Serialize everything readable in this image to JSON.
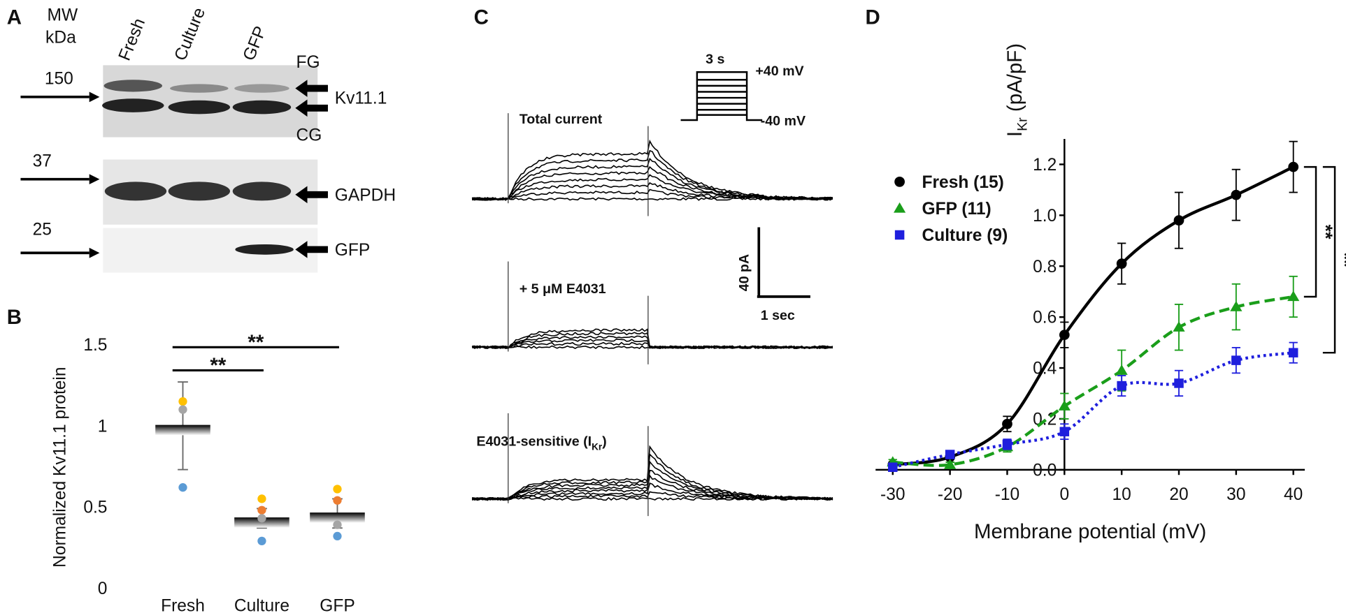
{
  "panel_labels": [
    "A",
    "B",
    "C",
    "D"
  ],
  "blot": {
    "mw_label": "MW",
    "mw_unit": "kDa",
    "lanes": [
      "Fresh",
      "Culture",
      "GFP"
    ],
    "markers": [
      "150",
      "37",
      "25"
    ],
    "band_labels": [
      "FG",
      "CG"
    ],
    "targets": [
      "Kv11.1",
      "GAPDH",
      "GFP"
    ]
  },
  "traces": {
    "labels": [
      "Total current",
      "+ 5 μM E4031"
    ],
    "sensitive_label_parts": [
      "E4031-sensitive (I",
      "Kr",
      ")"
    ],
    "protocol": {
      "duration": "3 s",
      "high": "+40 mV",
      "low": "-40 mV"
    },
    "scale": {
      "y": "40 pA",
      "x": "1 sec"
    }
  },
  "chart_data": [
    {
      "type": "dot",
      "ylabel": "Normalized Kv11.1 protein",
      "categories": [
        "Fresh",
        "Culture",
        "GFP"
      ],
      "means": [
        1.0,
        0.43,
        0.46
      ],
      "errors": [
        0.27,
        0.06,
        0.09
      ],
      "series": [
        {
          "color": "#ffc000",
          "values": [
            1.15,
            0.55,
            0.61
          ]
        },
        {
          "color": "#ed7d31",
          "values": [
            null,
            0.48,
            0.54
          ]
        },
        {
          "color": "#a5a5a5",
          "values": [
            1.1,
            0.43,
            0.39
          ]
        },
        {
          "color": "#5b9bd5",
          "values": [
            0.62,
            0.29,
            0.32
          ]
        }
      ],
      "ylim": [
        0,
        1.5
      ],
      "yticks": [
        0,
        0.5,
        1,
        1.5
      ],
      "significance": [
        {
          "from": 0,
          "to": 1,
          "label": "**"
        },
        {
          "from": 0,
          "to": 2,
          "label": "**"
        }
      ]
    },
    {
      "type": "line",
      "xlabel": "Membrane potential (mV)",
      "ylabel_parts": [
        "I",
        "Kr",
        " (pA/pF)"
      ],
      "x": [
        -30,
        -20,
        -10,
        0,
        10,
        20,
        30,
        40
      ],
      "series": [
        {
          "name": "Fresh (15)",
          "color": "#000000",
          "marker": "circle",
          "dash": "solid",
          "values": [
            0.02,
            0.05,
            0.18,
            0.53,
            0.81,
            0.98,
            1.08,
            1.19
          ],
          "errors": [
            0.01,
            0.02,
            0.03,
            0.05,
            0.08,
            0.11,
            0.1,
            0.1
          ]
        },
        {
          "name": "GFP (11)",
          "color": "#1a9e1a",
          "marker": "triangle",
          "dash": "dashed",
          "values": [
            0.03,
            0.02,
            0.09,
            0.25,
            0.39,
            0.56,
            0.64,
            0.68
          ],
          "errors": [
            0.01,
            0.01,
            0.02,
            0.05,
            0.08,
            0.09,
            0.09,
            0.08
          ]
        },
        {
          "name": "Culture (9)",
          "color": "#1f1fdd",
          "marker": "square",
          "dash": "dotted",
          "values": [
            0.01,
            0.06,
            0.1,
            0.15,
            0.33,
            0.34,
            0.43,
            0.46
          ],
          "errors": [
            0.01,
            0.01,
            0.02,
            0.03,
            0.04,
            0.05,
            0.05,
            0.04
          ]
        }
      ],
      "xlim": [
        -33,
        42
      ],
      "xticks": [
        -30,
        -20,
        -10,
        0,
        10,
        20,
        30,
        40
      ],
      "ylim": [
        0,
        1.3
      ],
      "yticks": [
        {
          "value": 0,
          "label": "0.0"
        },
        0.2,
        0.4,
        0.6,
        0.8,
        {
          "value": 1,
          "label": "1.0"
        },
        1.2
      ],
      "legend": "upper left",
      "significance": [
        {
          "from": 0,
          "to": 1,
          "label": "**"
        },
        {
          "from": 0,
          "to": 2,
          "label": "**"
        }
      ]
    }
  ]
}
